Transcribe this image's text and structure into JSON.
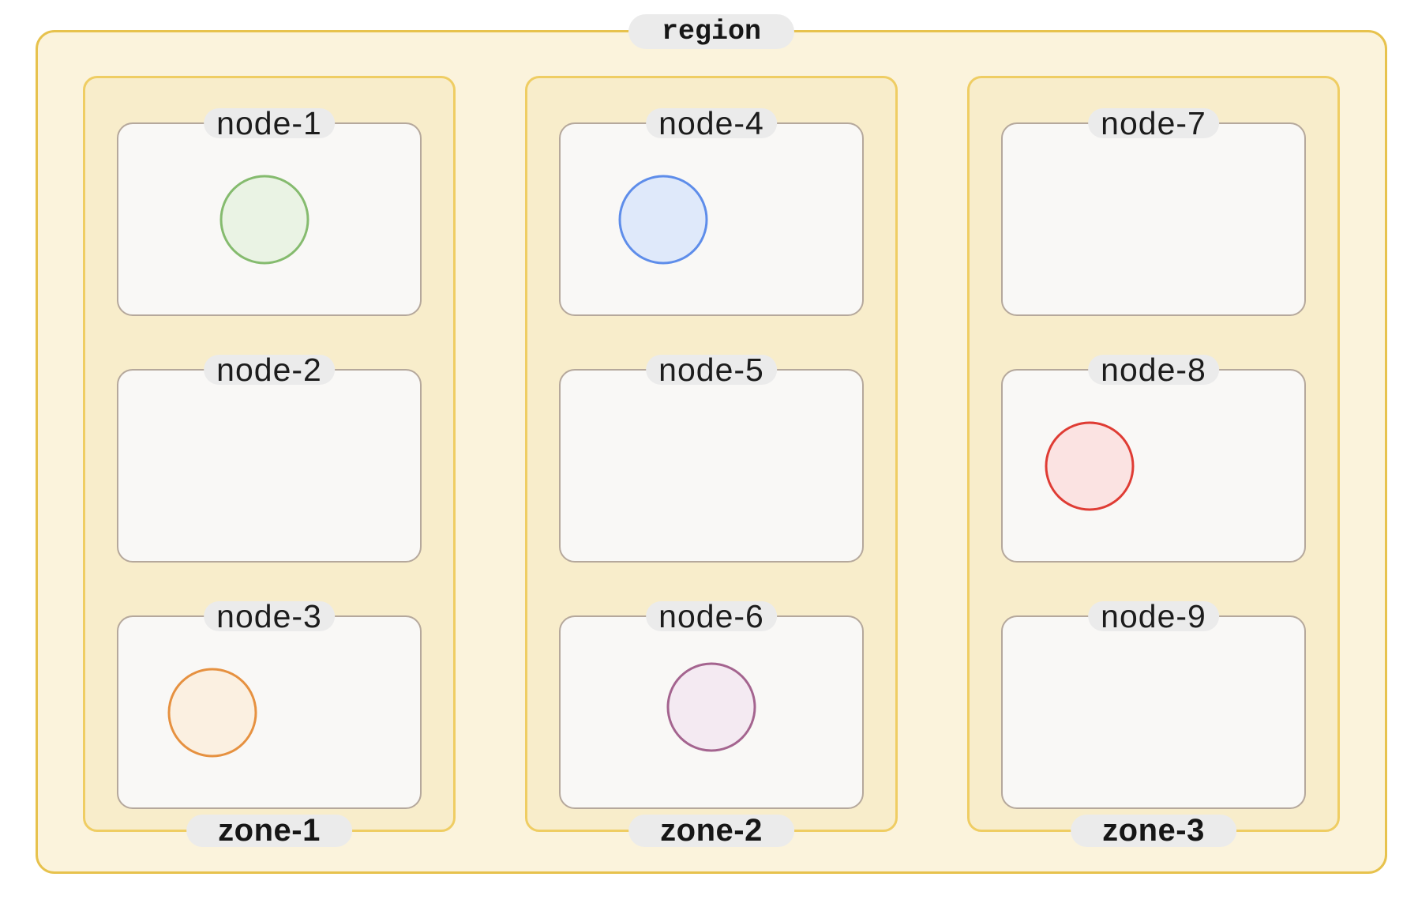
{
  "diagram": {
    "region": {
      "label": "region",
      "zones": [
        {
          "label": "zone-1",
          "nodes": [
            {
              "label": "node-1",
              "pod": {
                "color_name": "green",
                "fill": "#eaf3e4",
                "stroke": "#85bb6e"
              }
            },
            {
              "label": "node-2",
              "pod": null
            },
            {
              "label": "node-3",
              "pod": {
                "color_name": "orange",
                "fill": "#fbf0e1",
                "stroke": "#e69140"
              }
            }
          ]
        },
        {
          "label": "zone-2",
          "nodes": [
            {
              "label": "node-4",
              "pod": {
                "color_name": "blue",
                "fill": "#dfe9fa",
                "stroke": "#5e8dea"
              }
            },
            {
              "label": "node-5",
              "pod": null
            },
            {
              "label": "node-6",
              "pod": {
                "color_name": "purple",
                "fill": "#f4eaf2",
                "stroke": "#a4648f"
              }
            }
          ]
        },
        {
          "label": "zone-3",
          "nodes": [
            {
              "label": "node-7",
              "pod": null
            },
            {
              "label": "node-8",
              "pod": {
                "color_name": "red",
                "fill": "#fbe3e2",
                "stroke": "#df3c34"
              }
            },
            {
              "label": "node-9",
              "pod": null
            }
          ]
        }
      ]
    },
    "colors": {
      "region_bg": "#fbf3dc",
      "region_border": "#e7c24d",
      "zone_bg": "#f8edcb",
      "zone_border": "#efcd63",
      "node_bg": "#f9f8f6",
      "node_border": "#b5a89c",
      "label_pill_bg": "#ebebeb",
      "label_text": "#161616"
    }
  }
}
